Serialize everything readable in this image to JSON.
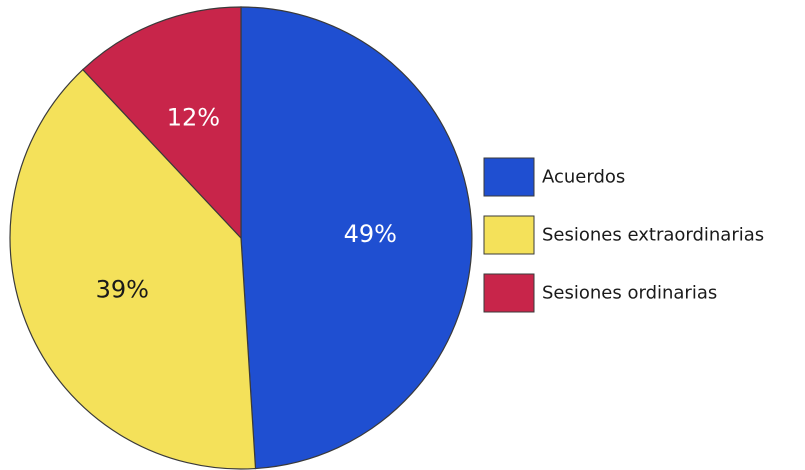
{
  "chart_data": {
    "type": "pie",
    "categories": [
      "Acuerdos",
      "Sesiones extraordinarias",
      "Sesiones ordinarias"
    ],
    "values": [
      49,
      39,
      12
    ],
    "data_labels": [
      "49%",
      "39%",
      "12%"
    ],
    "colors": [
      "#1f4fd1",
      "#f4e15a",
      "#c8254a"
    ],
    "label_colors": [
      "#ffffff",
      "#1a1a1a",
      "#ffffff"
    ],
    "start": "top",
    "direction": "clockwise",
    "legend_position": "right"
  }
}
